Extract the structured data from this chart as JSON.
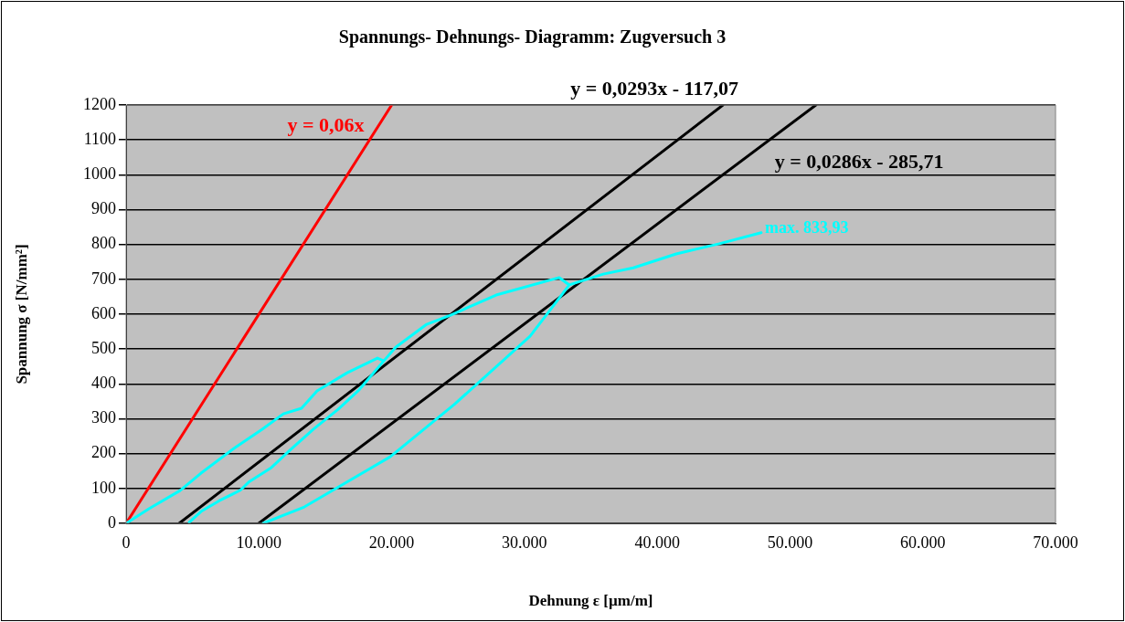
{
  "chart_data": {
    "type": "line",
    "title": "Spannungs- Dehnungs- Diagramm: Zugversuch 3",
    "xlabel": "Dehnung ε [µm/m]",
    "ylabel": "Spannung σ [N/mm²]",
    "xlim": [
      0,
      70000
    ],
    "xticks": [
      0,
      {
        "value": 10000,
        "label": "10.000"
      },
      {
        "value": 20000,
        "label": "20.000"
      },
      {
        "value": 30000,
        "label": "30.000"
      },
      {
        "value": 40000,
        "label": "40.000"
      },
      {
        "value": 50000,
        "label": "50.000"
      },
      {
        "value": 60000,
        "label": "60.000"
      },
      {
        "value": 70000,
        "label": "70.000"
      }
    ],
    "ylim": [
      0,
      1200
    ],
    "yticks": [
      0,
      100,
      200,
      300,
      400,
      500,
      600,
      700,
      800,
      900,
      1000,
      1100,
      1200
    ],
    "grid": "y",
    "legend": false,
    "marker": "none",
    "line_style": "solid",
    "series": [
      {
        "color": "#00ffff",
        "x": [
          0,
          1720,
          4060,
          5640,
          8190,
          10250,
          11840,
          13210,
          14380,
          16650,
          18930,
          19410,
          17550,
          15970,
          14110,
          12320,
          10940,
          9290,
          8600,
          7020,
          5640,
          4750,
          5640,
          7020,
          8600,
          9290,
          10940,
          12320,
          14110,
          15970,
          17550,
          19410,
          20300,
          22640,
          24430,
          27870,
          32620,
          33380,
          32280,
          30420,
          24710,
          19890,
          13420,
          10320,
          13420,
          19890,
          24710,
          30420,
          32280,
          33380,
          35930,
          38200,
          41430,
          44670,
          47830
        ],
        "values": [
          0,
          42,
          94,
          144,
          217,
          270,
          314,
          330,
          380,
          432,
          474,
          466,
          383,
          327,
          270,
          209,
          160,
          120,
          95,
          65,
          34,
          3,
          34,
          65,
          95,
          120,
          160,
          209,
          270,
          327,
          383,
          466,
          505,
          571,
          597,
          655,
          705,
          684,
          629,
          537,
          341,
          191,
          47,
          0,
          47,
          191,
          341,
          537,
          629,
          684,
          715,
          733,
          773,
          802,
          833.93
        ]
      },
      {
        "name": "y = 0,06x",
        "color": "#ff0000",
        "x": [
          0,
          20000
        ],
        "values": [
          0,
          1200
        ]
      },
      {
        "name": "y = 0,0293x - 117,07",
        "color": "#000000",
        "x": [
          3996,
          44950
        ],
        "values": [
          0,
          1200
        ]
      },
      {
        "name": "y = 0,0286x - 285,71",
        "color": "#000000",
        "x": [
          9990,
          51950
        ],
        "values": [
          0,
          1200
        ]
      }
    ],
    "annotations": [
      {
        "text": "max. 833,93",
        "x": 47830,
        "y": 833.93
      }
    ]
  }
}
